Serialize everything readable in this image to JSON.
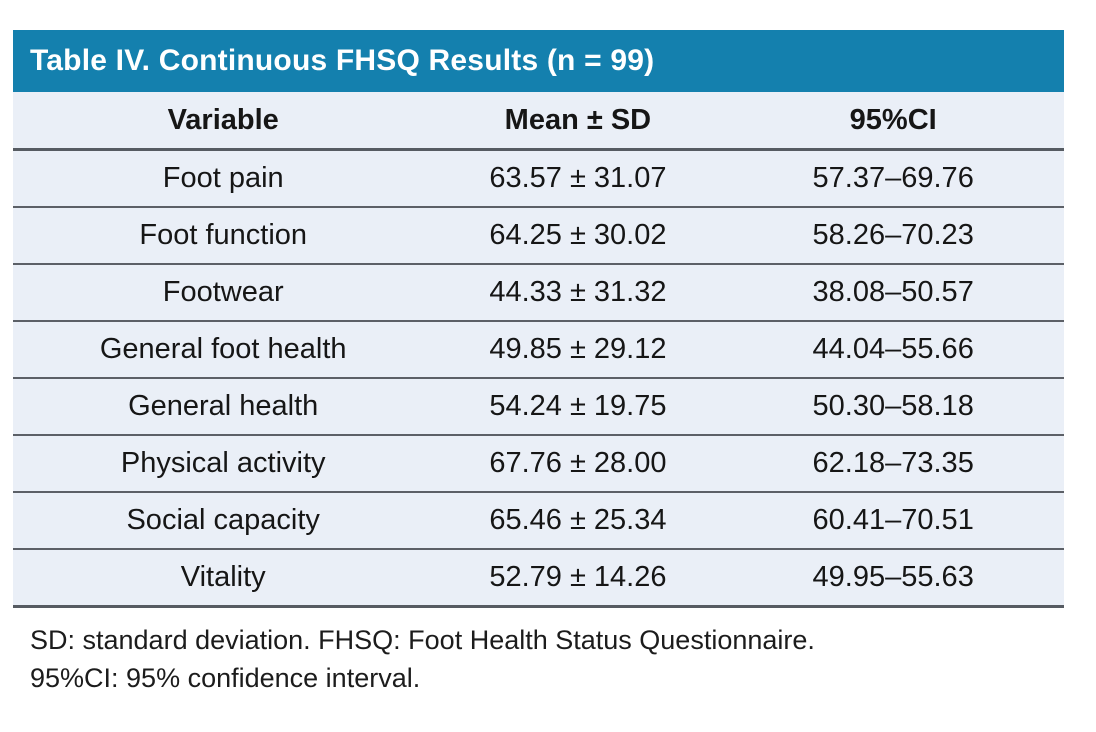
{
  "table": {
    "title": "Table IV. Continuous FHSQ Results (n = 99)",
    "columns": {
      "variable": "Variable",
      "mean_sd": "Mean ± SD",
      "ci": "95%CI"
    },
    "rows": [
      {
        "variable": "Foot pain",
        "mean_sd": "63.57 ± 31.07",
        "ci": "57.37–69.76"
      },
      {
        "variable": "Foot function",
        "mean_sd": "64.25 ± 30.02",
        "ci": "58.26–70.23"
      },
      {
        "variable": "Footwear",
        "mean_sd": "44.33 ± 31.32",
        "ci": "38.08–50.57"
      },
      {
        "variable": "General foot health",
        "mean_sd": "49.85 ± 29.12",
        "ci": "44.04–55.66"
      },
      {
        "variable": "General health",
        "mean_sd": "54.24 ± 19.75",
        "ci": "50.30–58.18"
      },
      {
        "variable": "Physical activity",
        "mean_sd": "67.76 ± 28.00",
        "ci": "62.18–73.35"
      },
      {
        "variable": "Social capacity",
        "mean_sd": "65.46 ± 25.34",
        "ci": "60.41–70.51"
      },
      {
        "variable": "Vitality",
        "mean_sd": "52.79 ± 14.26",
        "ci": "49.95–55.63"
      }
    ],
    "footnotes": [
      "SD: standard deviation. FHSQ: Foot Health Status Questionnaire.",
      "95%CI: 95% confidence interval."
    ],
    "sample_size": 99
  },
  "colors": {
    "title_band_bg": "#1480AE",
    "title_text": "#FFFFFF",
    "row_bg": "#EAEFF7",
    "separator": "#5C6067",
    "body_text": "#161616"
  }
}
